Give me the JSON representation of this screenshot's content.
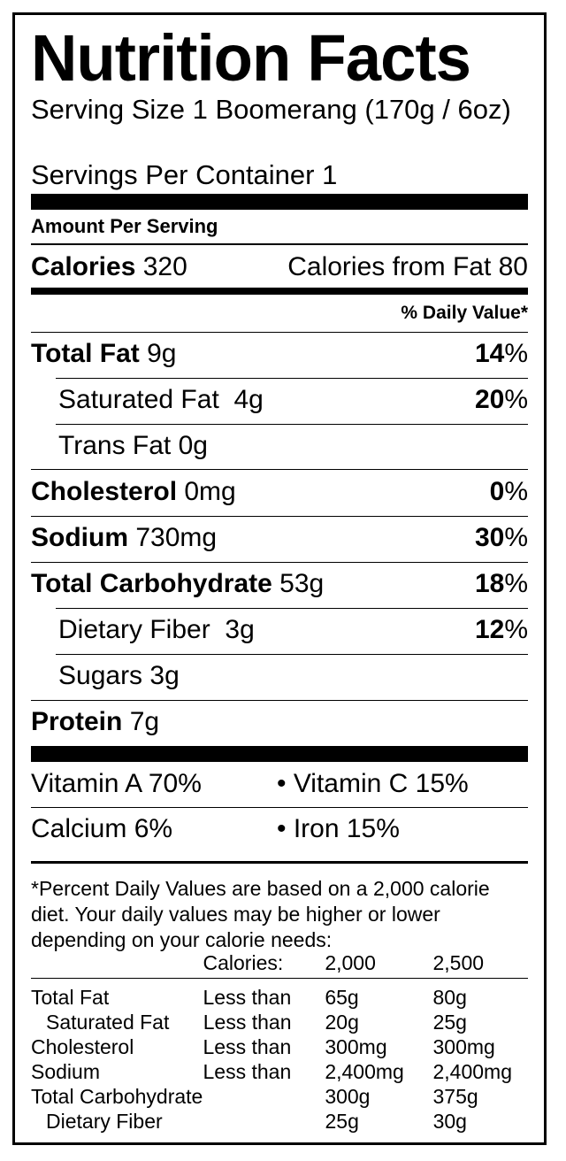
{
  "title": "Nutrition Facts",
  "serving_size": "Serving Size 1 Boomerang (170g / 6oz)",
  "servings_per_container": "Servings Per Container 1",
  "amount_per_serving": "Amount Per Serving",
  "calories": {
    "label": "Calories",
    "value": "320",
    "from_fat": "Calories from Fat 80"
  },
  "daily_value_header": "% Daily Value*",
  "nutrients": [
    {
      "name": "Total Fat",
      "amount": "9g",
      "dv": "14",
      "bold": true
    },
    {
      "name": "Saturated Fat",
      "amount": "4g",
      "dv": "20",
      "bold": false
    },
    {
      "name": "Trans Fat",
      "amount": "0g",
      "dv": "",
      "bold": false
    },
    {
      "name": "Cholesterol",
      "amount": "0mg",
      "dv": "0",
      "bold": true
    },
    {
      "name": "Sodium",
      "amount": "730mg",
      "dv": "30",
      "bold": true
    },
    {
      "name": "Total Carbohydrate",
      "amount": "53g",
      "dv": "18",
      "bold": true
    },
    {
      "name": "Dietary Fiber",
      "amount": "3g",
      "dv": "12",
      "bold": false
    },
    {
      "name": "Sugars",
      "amount": "3g",
      "dv": "",
      "bold": false
    },
    {
      "name": "Protein",
      "amount": "7g",
      "dv": "",
      "bold": true
    }
  ],
  "percent_sign": "%",
  "vitamins": [
    {
      "left": "Vitamin A 70%",
      "right": "• Vitamin C 15%"
    },
    {
      "left": "Calcium 6%",
      "right": "• Iron 15%"
    }
  ],
  "footnote": "*Percent Daily Values are based on a 2,000 calorie diet. Your daily values may be higher or lower depending on your calorie needs:",
  "reference_table": {
    "header": [
      "",
      "Calories:",
      "2,000",
      "2,500"
    ],
    "rows": [
      [
        "Total Fat",
        "Less than",
        "65g",
        "80g"
      ],
      [
        "Saturated Fat",
        "Less than",
        "20g",
        "25g"
      ],
      [
        "Cholesterol",
        "Less than",
        "300mg",
        "300mg"
      ],
      [
        "Sodium",
        "Less than",
        "2,400mg",
        "2,400mg"
      ],
      [
        "Total Carbohydrate",
        "",
        "300g",
        "375g"
      ],
      [
        "Dietary Fiber",
        "",
        "25g",
        "30g"
      ]
    ]
  }
}
